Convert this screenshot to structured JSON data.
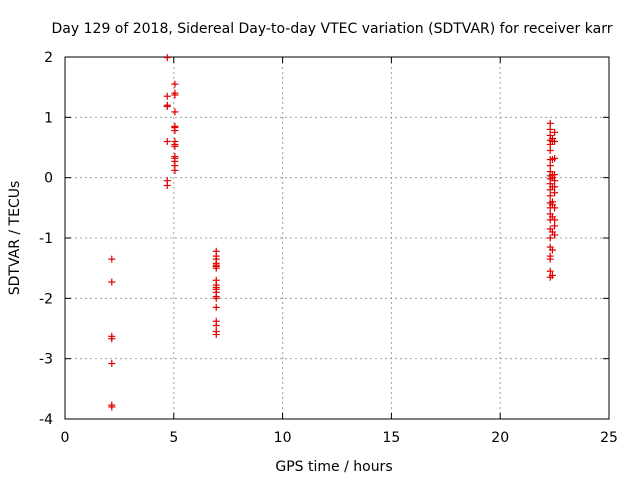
{
  "chart_data": {
    "type": "scatter",
    "title": "Day 129 of 2018, Sidereal Day-to-day VTEC variation (SDTVAR) for receiver karr",
    "xlabel": "GPS time / hours",
    "ylabel": "SDTVAR / TECUs",
    "xlim": [
      0,
      25
    ],
    "ylim": [
      -4,
      2
    ],
    "xticks": [
      0,
      5,
      10,
      15,
      20,
      25
    ],
    "yticks": [
      -4,
      -3,
      -2,
      -1,
      0,
      1,
      2
    ],
    "xtick_labels": [
      "0",
      "5",
      "10",
      "15",
      "20",
      "25"
    ],
    "ytick_labels": [
      "-4",
      "-3",
      "-2",
      "-1",
      "0",
      "1",
      "2"
    ],
    "grid": true,
    "marker": "+",
    "color": "#e00000",
    "series": [
      {
        "name": "SDTVAR",
        "points": [
          [
            2.15,
            -1.35
          ],
          [
            2.15,
            -1.73
          ],
          [
            2.15,
            -2.63
          ],
          [
            2.15,
            -2.67
          ],
          [
            2.15,
            -3.08
          ],
          [
            2.15,
            -3.77
          ],
          [
            2.15,
            -3.8
          ],
          [
            4.7,
            1.99
          ],
          [
            4.7,
            1.35
          ],
          [
            4.7,
            1.2
          ],
          [
            4.7,
            1.18
          ],
          [
            4.7,
            0.6
          ],
          [
            4.7,
            -0.05
          ],
          [
            4.7,
            -0.13
          ],
          [
            5.05,
            1.55
          ],
          [
            5.05,
            1.4
          ],
          [
            5.05,
            1.37
          ],
          [
            5.05,
            1.09
          ],
          [
            5.05,
            0.85
          ],
          [
            5.05,
            0.83
          ],
          [
            5.05,
            0.78
          ],
          [
            5.05,
            0.6
          ],
          [
            5.05,
            0.55
          ],
          [
            5.05,
            0.52
          ],
          [
            5.05,
            0.35
          ],
          [
            5.05,
            0.32
          ],
          [
            5.05,
            0.27
          ],
          [
            5.05,
            0.2
          ],
          [
            5.05,
            0.12
          ],
          [
            6.95,
            -1.22
          ],
          [
            6.95,
            -1.3
          ],
          [
            6.95,
            -1.35
          ],
          [
            6.95,
            -1.42
          ],
          [
            6.95,
            -1.45
          ],
          [
            6.95,
            -1.47
          ],
          [
            6.95,
            -1.5
          ],
          [
            6.95,
            -1.7
          ],
          [
            6.95,
            -1.78
          ],
          [
            6.95,
            -1.82
          ],
          [
            6.95,
            -1.85
          ],
          [
            6.95,
            -1.9
          ],
          [
            6.95,
            -1.97
          ],
          [
            6.95,
            -2.0
          ],
          [
            6.95,
            -2.15
          ],
          [
            6.95,
            -2.38
          ],
          [
            6.95,
            -2.45
          ],
          [
            6.95,
            -2.55
          ],
          [
            6.95,
            -2.6
          ],
          [
            22.3,
            0.9
          ],
          [
            22.3,
            0.8
          ],
          [
            22.3,
            0.7
          ],
          [
            22.3,
            0.62
          ],
          [
            22.3,
            0.55
          ],
          [
            22.3,
            0.45
          ],
          [
            22.3,
            0.3
          ],
          [
            22.3,
            0.2
          ],
          [
            22.3,
            0.1
          ],
          [
            22.3,
            0.03
          ],
          [
            22.3,
            -0.02
          ],
          [
            22.3,
            -0.1
          ],
          [
            22.3,
            -0.2
          ],
          [
            22.3,
            -0.3
          ],
          [
            22.3,
            -0.42
          ],
          [
            22.3,
            -0.5
          ],
          [
            22.3,
            -0.6
          ],
          [
            22.3,
            -0.7
          ],
          [
            22.3,
            -0.85
          ],
          [
            22.3,
            -1.0
          ],
          [
            22.3,
            -1.15
          ],
          [
            22.3,
            -1.3
          ],
          [
            22.3,
            -1.35
          ],
          [
            22.3,
            -1.55
          ],
          [
            22.3,
            -1.65
          ],
          [
            22.4,
            0.65
          ],
          [
            22.4,
            0.6
          ],
          [
            22.4,
            0.3
          ],
          [
            22.4,
            0.05
          ],
          [
            22.4,
            0.0
          ],
          [
            22.4,
            -0.15
          ],
          [
            22.4,
            -0.4
          ],
          [
            22.4,
            -0.45
          ],
          [
            22.4,
            -0.65
          ],
          [
            22.4,
            -0.9
          ],
          [
            22.4,
            -1.2
          ],
          [
            22.4,
            -1.62
          ],
          [
            22.5,
            0.75
          ],
          [
            22.5,
            0.6
          ],
          [
            22.5,
            0.32
          ],
          [
            22.5,
            0.05
          ],
          [
            22.5,
            -0.05
          ],
          [
            22.5,
            -0.15
          ],
          [
            22.5,
            -0.25
          ],
          [
            22.5,
            -0.5
          ],
          [
            22.5,
            -0.7
          ],
          [
            22.5,
            -0.8
          ],
          [
            22.5,
            -0.95
          ]
        ]
      }
    ]
  }
}
